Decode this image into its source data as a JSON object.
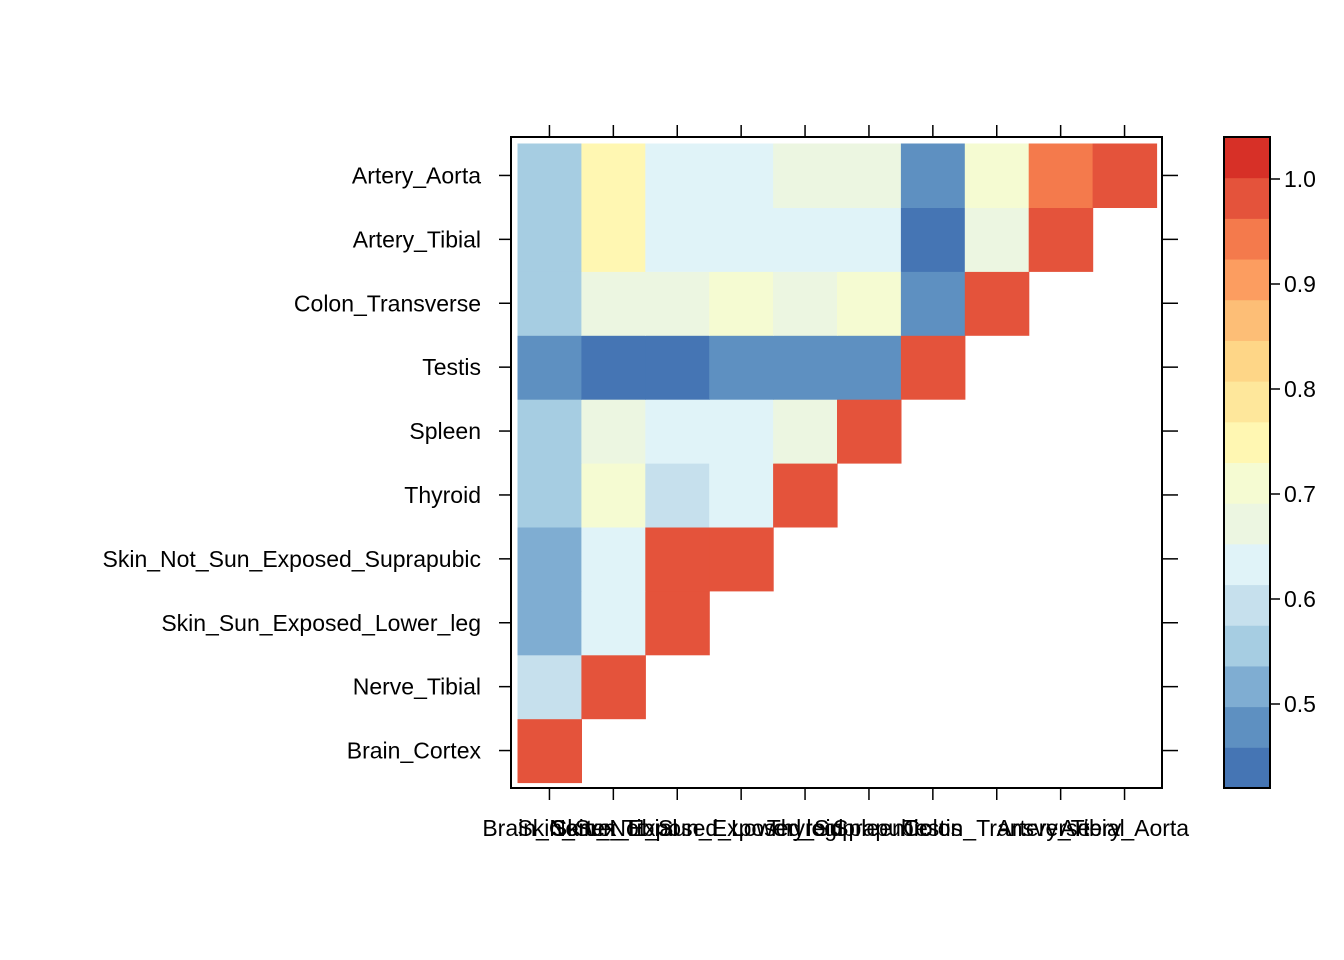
{
  "chart_data": {
    "type": "heatmap",
    "title": "",
    "xlabel": "",
    "ylabel": "",
    "categories": [
      "Brain_Cortex",
      "Nerve_Tibial",
      "Skin_Sun_Exposed_Lower_leg",
      "Skin_Not_Sun_Exposed_Suprapubic",
      "Thyroid",
      "Spleen",
      "Testis",
      "Colon_Transverse",
      "Artery_Tibial",
      "Artery_Aorta"
    ],
    "matrix": [
      [
        1.0,
        null,
        null,
        null,
        null,
        null,
        null,
        null,
        null,
        null
      ],
      [
        0.6,
        1.0,
        null,
        null,
        null,
        null,
        null,
        null,
        null,
        null
      ],
      [
        0.52,
        0.64,
        1.0,
        null,
        null,
        null,
        null,
        null,
        null,
        null
      ],
      [
        0.52,
        0.64,
        0.98,
        1.0,
        null,
        null,
        null,
        null,
        null,
        null
      ],
      [
        0.57,
        0.72,
        0.6,
        0.64,
        1.0,
        null,
        null,
        null,
        null,
        null
      ],
      [
        0.57,
        0.68,
        0.64,
        0.64,
        0.68,
        1.0,
        null,
        null,
        null,
        null
      ],
      [
        0.48,
        0.44,
        0.44,
        0.48,
        0.48,
        0.48,
        1.0,
        null,
        null,
        null
      ],
      [
        0.57,
        0.68,
        0.68,
        0.72,
        0.68,
        0.72,
        0.48,
        1.0,
        null,
        null
      ],
      [
        0.57,
        0.76,
        0.64,
        0.64,
        0.64,
        0.64,
        0.44,
        0.68,
        1.0,
        null
      ],
      [
        0.57,
        0.76,
        0.64,
        0.64,
        0.68,
        0.68,
        0.48,
        0.72,
        0.96,
        1.0
      ]
    ],
    "colorbar": {
      "range": [
        0.42,
        1.04
      ],
      "ticks": [
        "0.5",
        "0.6",
        "0.7",
        "0.8",
        "0.9",
        "1.0"
      ],
      "tick_values": [
        0.5,
        0.6,
        0.7,
        0.8,
        0.9,
        1.0
      ],
      "colors": [
        "#4575b4",
        "#5e90c1",
        "#7fadd2",
        "#a6cde2",
        "#c6e0ed",
        "#e0f3f8",
        "#ecf6e1",
        "#f5fbd2",
        "#fff7b2",
        "#fee79b",
        "#fed687",
        "#fdbe76",
        "#fc9d60",
        "#f47a4c",
        "#e4533b",
        "#d73027"
      ]
    },
    "grid": false,
    "legend": "right"
  }
}
